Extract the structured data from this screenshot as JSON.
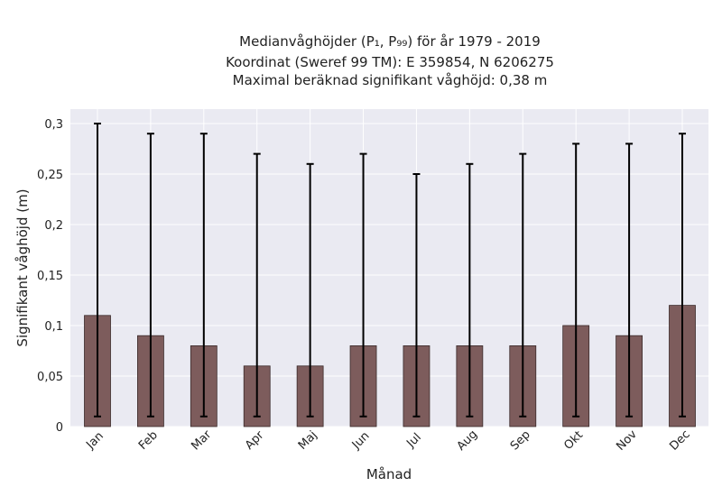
{
  "chart_data": {
    "type": "bar",
    "title_lines": [
      "Medianvåghöjder (P₁, P₉₉) för år 1979 - 2019",
      "Koordinat (Sweref 99 TM): E 359854, N 6206275",
      "Maximal beräknad signifikant våghöjd: 0,38 m"
    ],
    "xlabel": "Månad",
    "ylabel": "Signifikant våghöjd (m)",
    "categories": [
      "Jan",
      "Feb",
      "Mar",
      "Apr",
      "Maj",
      "Jun",
      "Jul",
      "Aug",
      "Sep",
      "Okt",
      "Nov",
      "Dec"
    ],
    "values": [
      0.11,
      0.09,
      0.08,
      0.06,
      0.06,
      0.08,
      0.08,
      0.08,
      0.08,
      0.1,
      0.09,
      0.12
    ],
    "p1": [
      0.01,
      0.01,
      0.01,
      0.01,
      0.01,
      0.01,
      0.01,
      0.01,
      0.01,
      0.01,
      0.01,
      0.01
    ],
    "p99": [
      0.3,
      0.29,
      0.29,
      0.27,
      0.26,
      0.27,
      0.25,
      0.26,
      0.27,
      0.28,
      0.28,
      0.29
    ],
    "ylim": [
      0,
      0.31
    ],
    "yticks": [
      0,
      0.05,
      0.1,
      0.15,
      0.2,
      0.25,
      0.3
    ],
    "ytick_labels": [
      "0",
      "0,05",
      "0,1",
      "0,15",
      "0,2",
      "0,25",
      "0,3"
    ],
    "grid": true,
    "colors": {
      "bar": "#7d5c5c",
      "bar_edge": "#3a2a2a",
      "errorbar": "#000000",
      "plot_bg": "#eaeaf2",
      "grid": "#ffffff"
    }
  }
}
